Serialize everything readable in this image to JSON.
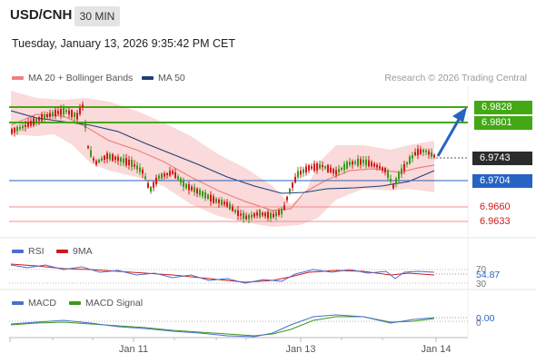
{
  "header": {
    "symbol": "USD/CNH",
    "timeframe": "30 MIN",
    "timestamp": "Tuesday, January 13, 2026 9:35:42 PM CET"
  },
  "legend_main": [
    {
      "label": "MA 20 + Bollinger Bands",
      "color": "#f08080"
    },
    {
      "label": "MA 50",
      "color": "#1f3f7a"
    }
  ],
  "credit": "Research © 2026 Trading Central",
  "levels": [
    {
      "value": "6.9828",
      "style": "green"
    },
    {
      "value": "6.9801",
      "style": "green"
    },
    {
      "value": "6.9743",
      "style": "dark"
    },
    {
      "value": "6.9704",
      "style": "blue"
    },
    {
      "value": "6.9660",
      "style": "red"
    },
    {
      "value": "6.9633",
      "style": "red"
    }
  ],
  "rsi": {
    "legend": [
      {
        "label": "RSI",
        "color": "#4a6fd0"
      },
      {
        "label": "9MA",
        "color": "#d11a1a"
      }
    ],
    "ticks": [
      "70",
      "30"
    ],
    "value": "54.87"
  },
  "macd": {
    "legend": [
      {
        "label": "MACD",
        "color": "#4a6fd0"
      },
      {
        "label": "MACD Signal",
        "color": "#3a9a1a"
      }
    ],
    "ticks": [
      "0"
    ],
    "value": "0.00"
  },
  "xaxis": {
    "labels": [
      "Jan 11",
      "Jan 13",
      "Jan 14"
    ]
  },
  "colors": {
    "green": "#43a814",
    "blue": "#2763c2",
    "red": "#d11a1a",
    "band": "#fadada",
    "arrow": "#2763c2"
  },
  "chart_data": {
    "type": "candlestick",
    "series": [
      "USD/CNH 30 min"
    ],
    "horizontal_levels": [
      6.9828,
      6.9801,
      6.9743,
      6.9704,
      6.966,
      6.9633
    ],
    "last_price": 6.9743,
    "indicators": [
      "MA 20 + Bollinger Bands",
      "MA 50",
      "RSI",
      "9MA",
      "MACD",
      "MACD Signal"
    ],
    "rsi_last": 54.87,
    "macd_last": 0.0,
    "x_tick_labels": [
      "Jan 11",
      "Jan 13",
      "Jan 14"
    ],
    "projection": "up toward 6.9828"
  }
}
